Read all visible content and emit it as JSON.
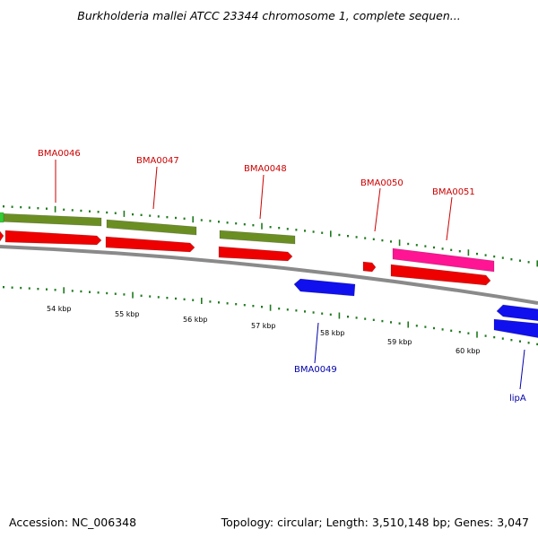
{
  "header": {
    "title": "Burkholderia mallei ATCC 23344 chromosome 1, complete sequen..."
  },
  "footer": {
    "accession": "Accession: NC_006348",
    "summary": "Topology: circular; Length: 3,510,148 bp; Genes: 3,047"
  },
  "colors": {
    "backbone": "#8a8a8a",
    "tick": "#1e7a1e",
    "forward_label": "#cc0000",
    "reverse_label": "#0000aa",
    "gene_green": "#6b8e23",
    "cds_red": "#ee0000",
    "pink": "#ff1493",
    "reverse_blue": "#1010ee",
    "lime": "#33cc33"
  },
  "scale": {
    "tick_labels": [
      "54 kbp",
      "55 kbp",
      "56 kbp",
      "57 kbp",
      "58 kbp",
      "59 kbp",
      "60 kbp"
    ]
  },
  "forward_gene_labels": [
    {
      "name": "BMA0046"
    },
    {
      "name": "BMA0047"
    },
    {
      "name": "BMA0048"
    },
    {
      "name": "BMA0050"
    },
    {
      "name": "BMA0051"
    }
  ],
  "reverse_gene_labels": [
    {
      "name": "BMA0049"
    },
    {
      "name": "lipA"
    }
  ]
}
